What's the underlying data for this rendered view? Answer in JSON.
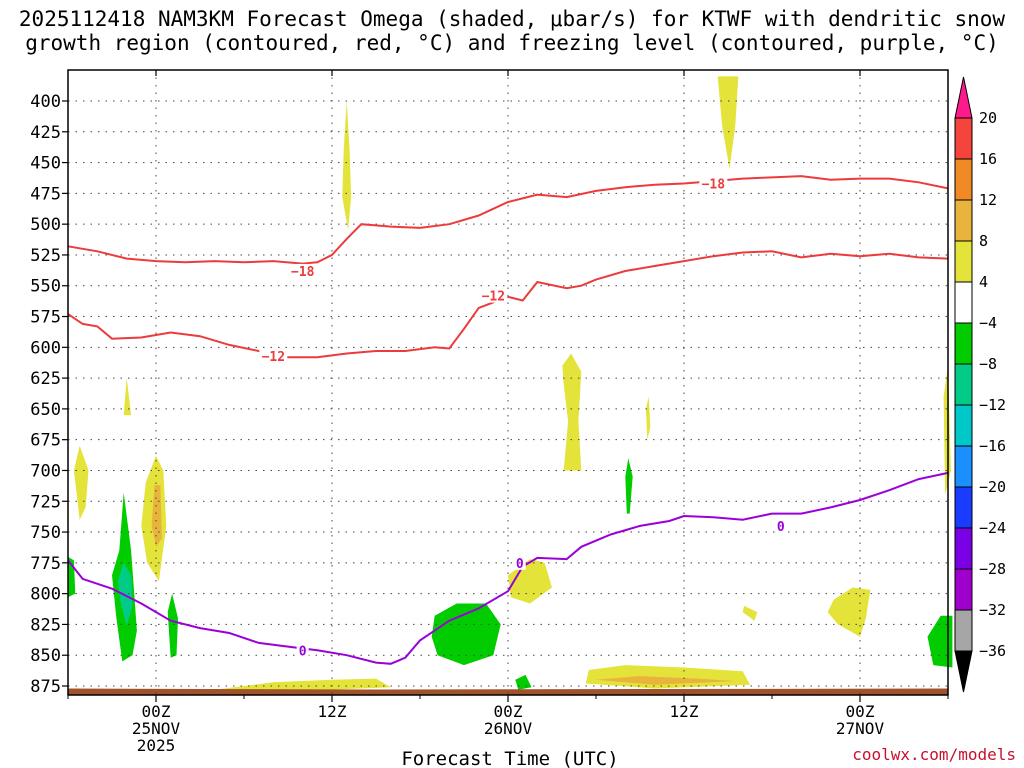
{
  "chart_data": {
    "type": "contour",
    "title_line1": "2025112418 NAM3KM Forecast Omega (shaded, μbar/s) for KTWF with dendritic snow",
    "title_line2": "growth region (contoured, red, °C) and freezing level (contoured, purple, °C)",
    "xlabel": "Forecast Time (UTC)",
    "x_range_hours": [
      0,
      60
    ],
    "y_range_mb": [
      380,
      885
    ],
    "y_ticks": [
      "400",
      "425",
      "450",
      "475",
      "500",
      "525",
      "550",
      "575",
      "600",
      "625",
      "650",
      "675",
      "700",
      "725",
      "750",
      "775",
      "800",
      "825",
      "850",
      "875"
    ],
    "x_ticks": [
      {
        "hour": 6,
        "lines": [
          "00Z",
          "25NOV",
          "2025"
        ]
      },
      {
        "hour": 18,
        "lines": [
          "12Z"
        ]
      },
      {
        "hour": 30,
        "lines": [
          "00Z",
          "26NOV"
        ]
      },
      {
        "hour": 42,
        "lines": [
          "12Z"
        ]
      },
      {
        "hour": 54,
        "lines": [
          "00Z",
          "27NOV"
        ]
      }
    ],
    "colorbar": {
      "labels": [
        "20",
        "16",
        "12",
        "8",
        "4",
        "−4",
        "−8",
        "−12",
        "−16",
        "−20",
        "−24",
        "−28",
        "−32",
        "−36"
      ],
      "colors": [
        "#ff1a8c",
        "#f5443c",
        "#f08a24",
        "#e8b43c",
        "#e3e33a",
        "#ffffff",
        "#00cc00",
        "#00cc88",
        "#00c8c8",
        "#1a90ff",
        "#1a3cff",
        "#7a00e6",
        "#a000cc",
        "#a6a6a6"
      ]
    },
    "contours": [
      {
        "name": "-18",
        "color": "#ec3b3b",
        "label_at": [
          16,
          538
        ],
        "label2_at": [
          44,
          467
        ],
        "points": [
          [
            0,
            518
          ],
          [
            2,
            522
          ],
          [
            4,
            528
          ],
          [
            6,
            530
          ],
          [
            8,
            531
          ],
          [
            10,
            530
          ],
          [
            12,
            531
          ],
          [
            14,
            530
          ],
          [
            16,
            532
          ],
          [
            17,
            531
          ],
          [
            18,
            525
          ],
          [
            19,
            512
          ],
          [
            20,
            500
          ],
          [
            22,
            502
          ],
          [
            24,
            503
          ],
          [
            26,
            500
          ],
          [
            28,
            493
          ],
          [
            30,
            482
          ],
          [
            32,
            476
          ],
          [
            34,
            478
          ],
          [
            36,
            473
          ],
          [
            38,
            470
          ],
          [
            40,
            468
          ],
          [
            42,
            467
          ],
          [
            44,
            465
          ],
          [
            46,
            463
          ],
          [
            48,
            462
          ],
          [
            50,
            461
          ],
          [
            52,
            464
          ],
          [
            54,
            463
          ],
          [
            56,
            463
          ],
          [
            58,
            466
          ],
          [
            60,
            471
          ]
        ]
      },
      {
        "name": "-12",
        "color": "#ec3b3b",
        "label_at": [
          14,
          607
        ],
        "label2_at": [
          29,
          558
        ],
        "points": [
          [
            0,
            573
          ],
          [
            1,
            581
          ],
          [
            2,
            583
          ],
          [
            3,
            593
          ],
          [
            5,
            592
          ],
          [
            7,
            588
          ],
          [
            9,
            591
          ],
          [
            11,
            598
          ],
          [
            13,
            603
          ],
          [
            15,
            608
          ],
          [
            17,
            608
          ],
          [
            19,
            605
          ],
          [
            21,
            603
          ],
          [
            23,
            603
          ],
          [
            25,
            600
          ],
          [
            26,
            601
          ],
          [
            27,
            585
          ],
          [
            28,
            568
          ],
          [
            30,
            559
          ],
          [
            31,
            562
          ],
          [
            32,
            547
          ],
          [
            34,
            552
          ],
          [
            35,
            550
          ],
          [
            36,
            545
          ],
          [
            38,
            538
          ],
          [
            40,
            534
          ],
          [
            42,
            530
          ],
          [
            44,
            526
          ],
          [
            46,
            523
          ],
          [
            48,
            522
          ],
          [
            50,
            527
          ],
          [
            52,
            524
          ],
          [
            54,
            526
          ],
          [
            56,
            524
          ],
          [
            58,
            527
          ],
          [
            60,
            528
          ]
        ]
      },
      {
        "name": "0",
        "color": "#9a00d9",
        "label_at": [
          16,
          846
        ],
        "label2_at": [
          30.8,
          775
        ],
        "label3_at": [
          48.6,
          745
        ],
        "points": [
          [
            0,
            773
          ],
          [
            1,
            788
          ],
          [
            3,
            796
          ],
          [
            5,
            808
          ],
          [
            7,
            822
          ],
          [
            9,
            828
          ],
          [
            11,
            832
          ],
          [
            13,
            840
          ],
          [
            15,
            843
          ],
          [
            17,
            846
          ],
          [
            19,
            850
          ],
          [
            21,
            856
          ],
          [
            22,
            857
          ],
          [
            23,
            852
          ],
          [
            24,
            838
          ],
          [
            26,
            822
          ],
          [
            28,
            812
          ],
          [
            30,
            798
          ],
          [
            31,
            778
          ],
          [
            32,
            771
          ],
          [
            34,
            772
          ],
          [
            35,
            762
          ],
          [
            37,
            752
          ],
          [
            39,
            745
          ],
          [
            41,
            741
          ],
          [
            42,
            737
          ],
          [
            44,
            738
          ],
          [
            46,
            740
          ],
          [
            48,
            735
          ],
          [
            50,
            735
          ],
          [
            52,
            730
          ],
          [
            54,
            724
          ],
          [
            56,
            716
          ],
          [
            58,
            707
          ],
          [
            60,
            702
          ]
        ]
      }
    ],
    "omega_regions": [
      {
        "value": "4 to 8",
        "color": "#e3e33a",
        "pts": [
          [
            18.7,
            478
          ],
          [
            18.8,
            440
          ],
          [
            19.0,
            400
          ],
          [
            19.2,
            440
          ],
          [
            19.3,
            478
          ],
          [
            19.1,
            505
          ]
        ]
      },
      {
        "value": "4 to 8",
        "color": "#e3e33a",
        "pts": [
          [
            44.3,
            380
          ],
          [
            45.7,
            380
          ],
          [
            45.5,
            420
          ],
          [
            45.1,
            455
          ],
          [
            44.6,
            420
          ]
        ]
      },
      {
        "value": "4 to 8",
        "color": "#e3e33a",
        "pts": [
          [
            0.4,
            700
          ],
          [
            0.8,
            680
          ],
          [
            1.4,
            700
          ],
          [
            1.2,
            730
          ],
          [
            0.8,
            740
          ]
        ]
      },
      {
        "value": "4 to 8",
        "color": "#e3e33a",
        "pts": [
          [
            3.8,
            655
          ],
          [
            4.0,
            625
          ],
          [
            4.3,
            655
          ]
        ]
      },
      {
        "value": "4 to 8",
        "color": "#e3e33a",
        "pts": [
          [
            5.0,
            745
          ],
          [
            5.3,
            710
          ],
          [
            6.0,
            688
          ],
          [
            6.5,
            700
          ],
          [
            6.7,
            745
          ],
          [
            6.2,
            790
          ],
          [
            5.4,
            775
          ]
        ]
      },
      {
        "value": "8 to 12",
        "color": "#e8b43c",
        "pts": [
          [
            5.7,
            745
          ],
          [
            5.9,
            712
          ],
          [
            6.3,
            712
          ],
          [
            6.4,
            755
          ],
          [
            6.0,
            762
          ]
        ]
      },
      {
        "value": "4 to 8",
        "color": "#e3e33a",
        "pts": [
          [
            33.7,
            615
          ],
          [
            34.3,
            605
          ],
          [
            35.0,
            620
          ],
          [
            34.8,
            660
          ],
          [
            35.0,
            700
          ],
          [
            33.8,
            700
          ],
          [
            34.1,
            660
          ],
          [
            33.8,
            630
          ]
        ]
      },
      {
        "value": "4 to 8",
        "color": "#e3e33a",
        "pts": [
          [
            30.0,
            785
          ],
          [
            31.5,
            772
          ],
          [
            32.5,
            775
          ],
          [
            33.0,
            795
          ],
          [
            31.5,
            808
          ],
          [
            30.2,
            803
          ]
        ]
      },
      {
        "value": "4 to 8",
        "color": "#e3e33a",
        "pts": [
          [
            39.4,
            650
          ],
          [
            39.6,
            640
          ],
          [
            39.7,
            665
          ],
          [
            39.5,
            675
          ]
        ]
      },
      {
        "value": "4 to 8",
        "color": "#e3e33a",
        "pts": [
          [
            52.2,
            805
          ],
          [
            53.5,
            795
          ],
          [
            54.7,
            797
          ],
          [
            54.4,
            820
          ],
          [
            54.0,
            835
          ],
          [
            52.5,
            825
          ],
          [
            51.8,
            815
          ]
        ]
      },
      {
        "value": "4 to 8",
        "color": "#e3e33a",
        "pts": [
          [
            46.1,
            810
          ],
          [
            47.0,
            815
          ],
          [
            46.8,
            822
          ],
          [
            46.0,
            815
          ]
        ]
      },
      {
        "value": "4 to 8",
        "color": "#e3e33a",
        "pts": [
          [
            59.7,
            640
          ],
          [
            60.0,
            615
          ],
          [
            60.2,
            700
          ],
          [
            59.8,
            720
          ]
        ]
      },
      {
        "value": "4 to 8",
        "color": "#e3e33a",
        "pts": [
          [
            35.5,
            862
          ],
          [
            38,
            858
          ],
          [
            42,
            860
          ],
          [
            46,
            863
          ],
          [
            46.5,
            874
          ],
          [
            40,
            877
          ],
          [
            35.3,
            873
          ]
        ]
      },
      {
        "value": "8 to 12",
        "color": "#e8b43c",
        "pts": [
          [
            36,
            870
          ],
          [
            39,
            867
          ],
          [
            43,
            869
          ],
          [
            45.5,
            871
          ],
          [
            40,
            874
          ]
        ]
      },
      {
        "value": "4 to 8",
        "color": "#e3e33a",
        "pts": [
          [
            10,
            878
          ],
          [
            14,
            872
          ],
          [
            18,
            870
          ],
          [
            21,
            869
          ],
          [
            22,
            876
          ],
          [
            16,
            879
          ]
        ]
      },
      {
        "value": "-4 to -8",
        "color": "#00cc00",
        "pts": [
          [
            3.0,
            785
          ],
          [
            3.5,
            765
          ],
          [
            3.8,
            718
          ],
          [
            4.3,
            765
          ],
          [
            4.7,
            830
          ],
          [
            4.4,
            850
          ],
          [
            3.7,
            855
          ],
          [
            3.3,
            820
          ]
        ]
      },
      {
        "value": "-8 to -12",
        "color": "#00cc88",
        "pts": [
          [
            3.4,
            790
          ],
          [
            3.8,
            775
          ],
          [
            4.3,
            785
          ],
          [
            4.4,
            810
          ],
          [
            4.0,
            826
          ],
          [
            3.6,
            808
          ]
        ]
      },
      {
        "value": "-4 to -8",
        "color": "#00cc00",
        "pts": [
          [
            6.8,
            815
          ],
          [
            7.1,
            800
          ],
          [
            7.5,
            820
          ],
          [
            7.4,
            850
          ],
          [
            7.0,
            852
          ]
        ]
      },
      {
        "value": "-4 to -8",
        "color": "#00cc00",
        "pts": [
          [
            25.0,
            818
          ],
          [
            26.5,
            808
          ],
          [
            28.5,
            808
          ],
          [
            29.5,
            825
          ],
          [
            29.0,
            850
          ],
          [
            27.0,
            858
          ],
          [
            25.2,
            850
          ],
          [
            24.8,
            835
          ]
        ]
      },
      {
        "value": "-4 to -8",
        "color": "#00cc00",
        "pts": [
          [
            38.0,
            705
          ],
          [
            38.2,
            690
          ],
          [
            38.5,
            705
          ],
          [
            38.3,
            735
          ],
          [
            38.1,
            735
          ]
        ]
      },
      {
        "value": "-4 to -8",
        "color": "#00cc00",
        "pts": [
          [
            58.6,
            835
          ],
          [
            59.5,
            818
          ],
          [
            60.3,
            818
          ],
          [
            60.3,
            860
          ],
          [
            59.0,
            858
          ]
        ]
      },
      {
        "value": "-4 to -8",
        "color": "#00cc00",
        "pts": [
          [
            0,
            770
          ],
          [
            0.4,
            773
          ],
          [
            0.5,
            800
          ],
          [
            0,
            803
          ]
        ]
      },
      {
        "value": "-4 to -8",
        "color": "#00cc00",
        "pts": [
          [
            30.5,
            870
          ],
          [
            31.2,
            866
          ],
          [
            31.6,
            876
          ],
          [
            30.7,
            878
          ]
        ]
      }
    ],
    "terrain_color": "#a0522d",
    "terrain_top_mb": 877
  },
  "credit": "coolwx.com/models"
}
